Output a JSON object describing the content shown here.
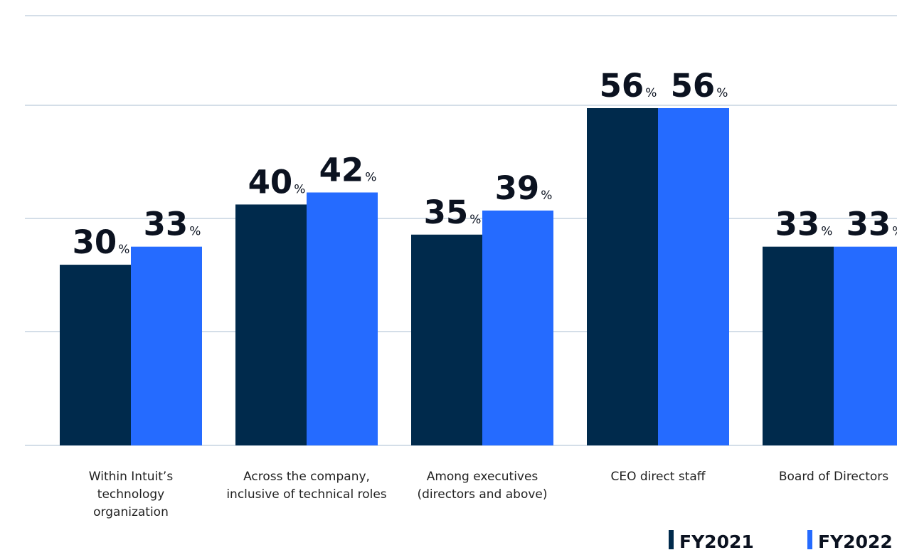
{
  "chart_data": {
    "type": "bar",
    "title": "",
    "categories": [
      [
        "Within Intuit’s",
        "technology",
        "organization"
      ],
      [
        "Across the company,",
        "inclusive of technical roles"
      ],
      [
        "Among executives",
        "(directors and above)"
      ],
      [
        "CEO direct staff"
      ],
      [
        "Board of Directors"
      ]
    ],
    "series": [
      {
        "name": "FY2021",
        "values": [
          30,
          40,
          35,
          56,
          33
        ],
        "color": "#002a4c"
      },
      {
        "name": "FY2022",
        "values": [
          33,
          42,
          39,
          56,
          33
        ],
        "color": "#256bff"
      }
    ],
    "value_suffix": "%",
    "ylim": [
      0,
      60
    ],
    "grid": true,
    "legend_position": "bottom-right"
  }
}
